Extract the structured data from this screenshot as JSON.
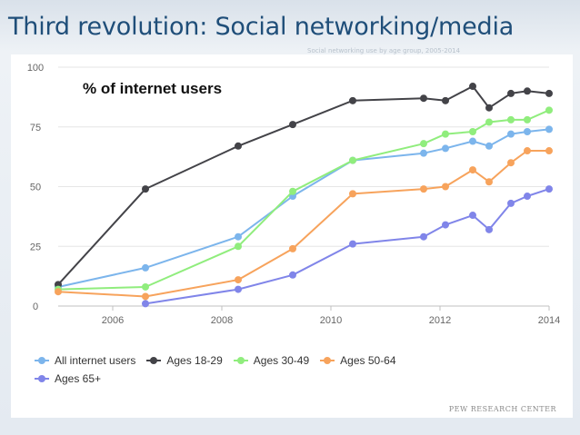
{
  "slide": {
    "title": "Third revolution: Social networking/media",
    "faded_subtitle": "Social networking use by age group, 2005-2014",
    "source_credit": "PEW RESEARCH CENTER"
  },
  "chart_data": {
    "type": "line",
    "title": "% of internet users",
    "xlabel": "",
    "ylabel": "",
    "xlim": [
      2005,
      2014
    ],
    "ylim": [
      0,
      100
    ],
    "x_ticks": [
      2006,
      2008,
      2010,
      2012,
      2014
    ],
    "y_ticks": [
      0,
      25,
      50,
      75,
      100
    ],
    "grid": true,
    "legend_position": "bottom-left",
    "series": [
      {
        "name": "All internet users",
        "color": "#7cb5ec",
        "points": [
          [
            2005.0,
            8
          ],
          [
            2006.6,
            16
          ],
          [
            2008.3,
            29
          ],
          [
            2009.3,
            46
          ],
          [
            2010.4,
            61
          ],
          [
            2011.7,
            64
          ],
          [
            2012.1,
            66
          ],
          [
            2012.6,
            69
          ],
          [
            2012.9,
            67
          ],
          [
            2013.3,
            72
          ],
          [
            2013.6,
            73
          ],
          [
            2014.0,
            74
          ]
        ]
      },
      {
        "name": "Ages 18-29",
        "color": "#434348",
        "points": [
          [
            2005.0,
            9
          ],
          [
            2006.6,
            49
          ],
          [
            2008.3,
            67
          ],
          [
            2009.3,
            76
          ],
          [
            2010.4,
            86
          ],
          [
            2011.7,
            87
          ],
          [
            2012.1,
            86
          ],
          [
            2012.6,
            92
          ],
          [
            2012.9,
            83
          ],
          [
            2013.3,
            89
          ],
          [
            2013.6,
            90
          ],
          [
            2014.0,
            89
          ]
        ]
      },
      {
        "name": "Ages 30-49",
        "color": "#90ed7d",
        "points": [
          [
            2005.0,
            7
          ],
          [
            2006.6,
            8
          ],
          [
            2008.3,
            25
          ],
          [
            2009.3,
            48
          ],
          [
            2010.4,
            61
          ],
          [
            2011.7,
            68
          ],
          [
            2012.1,
            72
          ],
          [
            2012.6,
            73
          ],
          [
            2012.9,
            77
          ],
          [
            2013.3,
            78
          ],
          [
            2013.6,
            78
          ],
          [
            2014.0,
            82
          ]
        ]
      },
      {
        "name": "Ages 50-64",
        "color": "#f7a35c",
        "points": [
          [
            2005.0,
            6
          ],
          [
            2006.6,
            4
          ],
          [
            2008.3,
            11
          ],
          [
            2009.3,
            24
          ],
          [
            2010.4,
            47
          ],
          [
            2011.7,
            49
          ],
          [
            2012.1,
            50
          ],
          [
            2012.6,
            57
          ],
          [
            2012.9,
            52
          ],
          [
            2013.3,
            60
          ],
          [
            2013.6,
            65
          ],
          [
            2014.0,
            65
          ]
        ]
      },
      {
        "name": "Ages 65+",
        "color": "#8085e9",
        "points": [
          [
            2006.6,
            1
          ],
          [
            2008.3,
            7
          ],
          [
            2009.3,
            13
          ],
          [
            2010.4,
            26
          ],
          [
            2011.7,
            29
          ],
          [
            2012.1,
            34
          ],
          [
            2012.6,
            38
          ],
          [
            2012.9,
            32
          ],
          [
            2013.3,
            43
          ],
          [
            2013.6,
            46
          ],
          [
            2014.0,
            49
          ]
        ]
      }
    ]
  },
  "legend": [
    {
      "label": "All internet users",
      "color": "#7cb5ec"
    },
    {
      "label": "Ages 18-29",
      "color": "#434348"
    },
    {
      "label": "Ages 30-49",
      "color": "#90ed7d"
    },
    {
      "label": "Ages 50-64",
      "color": "#f7a35c"
    },
    {
      "label": "Ages 65+",
      "color": "#8085e9"
    }
  ]
}
